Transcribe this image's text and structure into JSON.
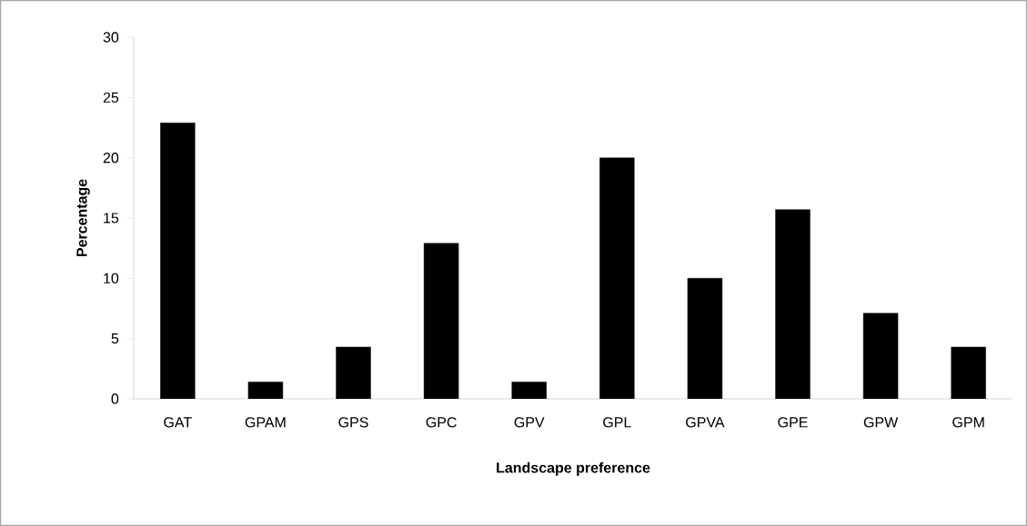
{
  "chart_data": {
    "type": "bar",
    "xlabel": "Landscape preference",
    "ylabel": "Percentage",
    "categories": [
      "GAT",
      "GPAM",
      "GPS",
      "GPC",
      "GPV",
      "GPL",
      "GPVA",
      "GPE",
      "GPW",
      "GPM"
    ],
    "values": [
      22.9,
      1.4,
      4.3,
      12.9,
      1.4,
      20.0,
      10.0,
      15.7,
      7.1,
      4.3
    ],
    "color": "#000000",
    "ylim": [
      0,
      30
    ],
    "yticks": [
      0,
      5,
      10,
      15,
      20,
      25,
      30
    ],
    "grid": false
  }
}
